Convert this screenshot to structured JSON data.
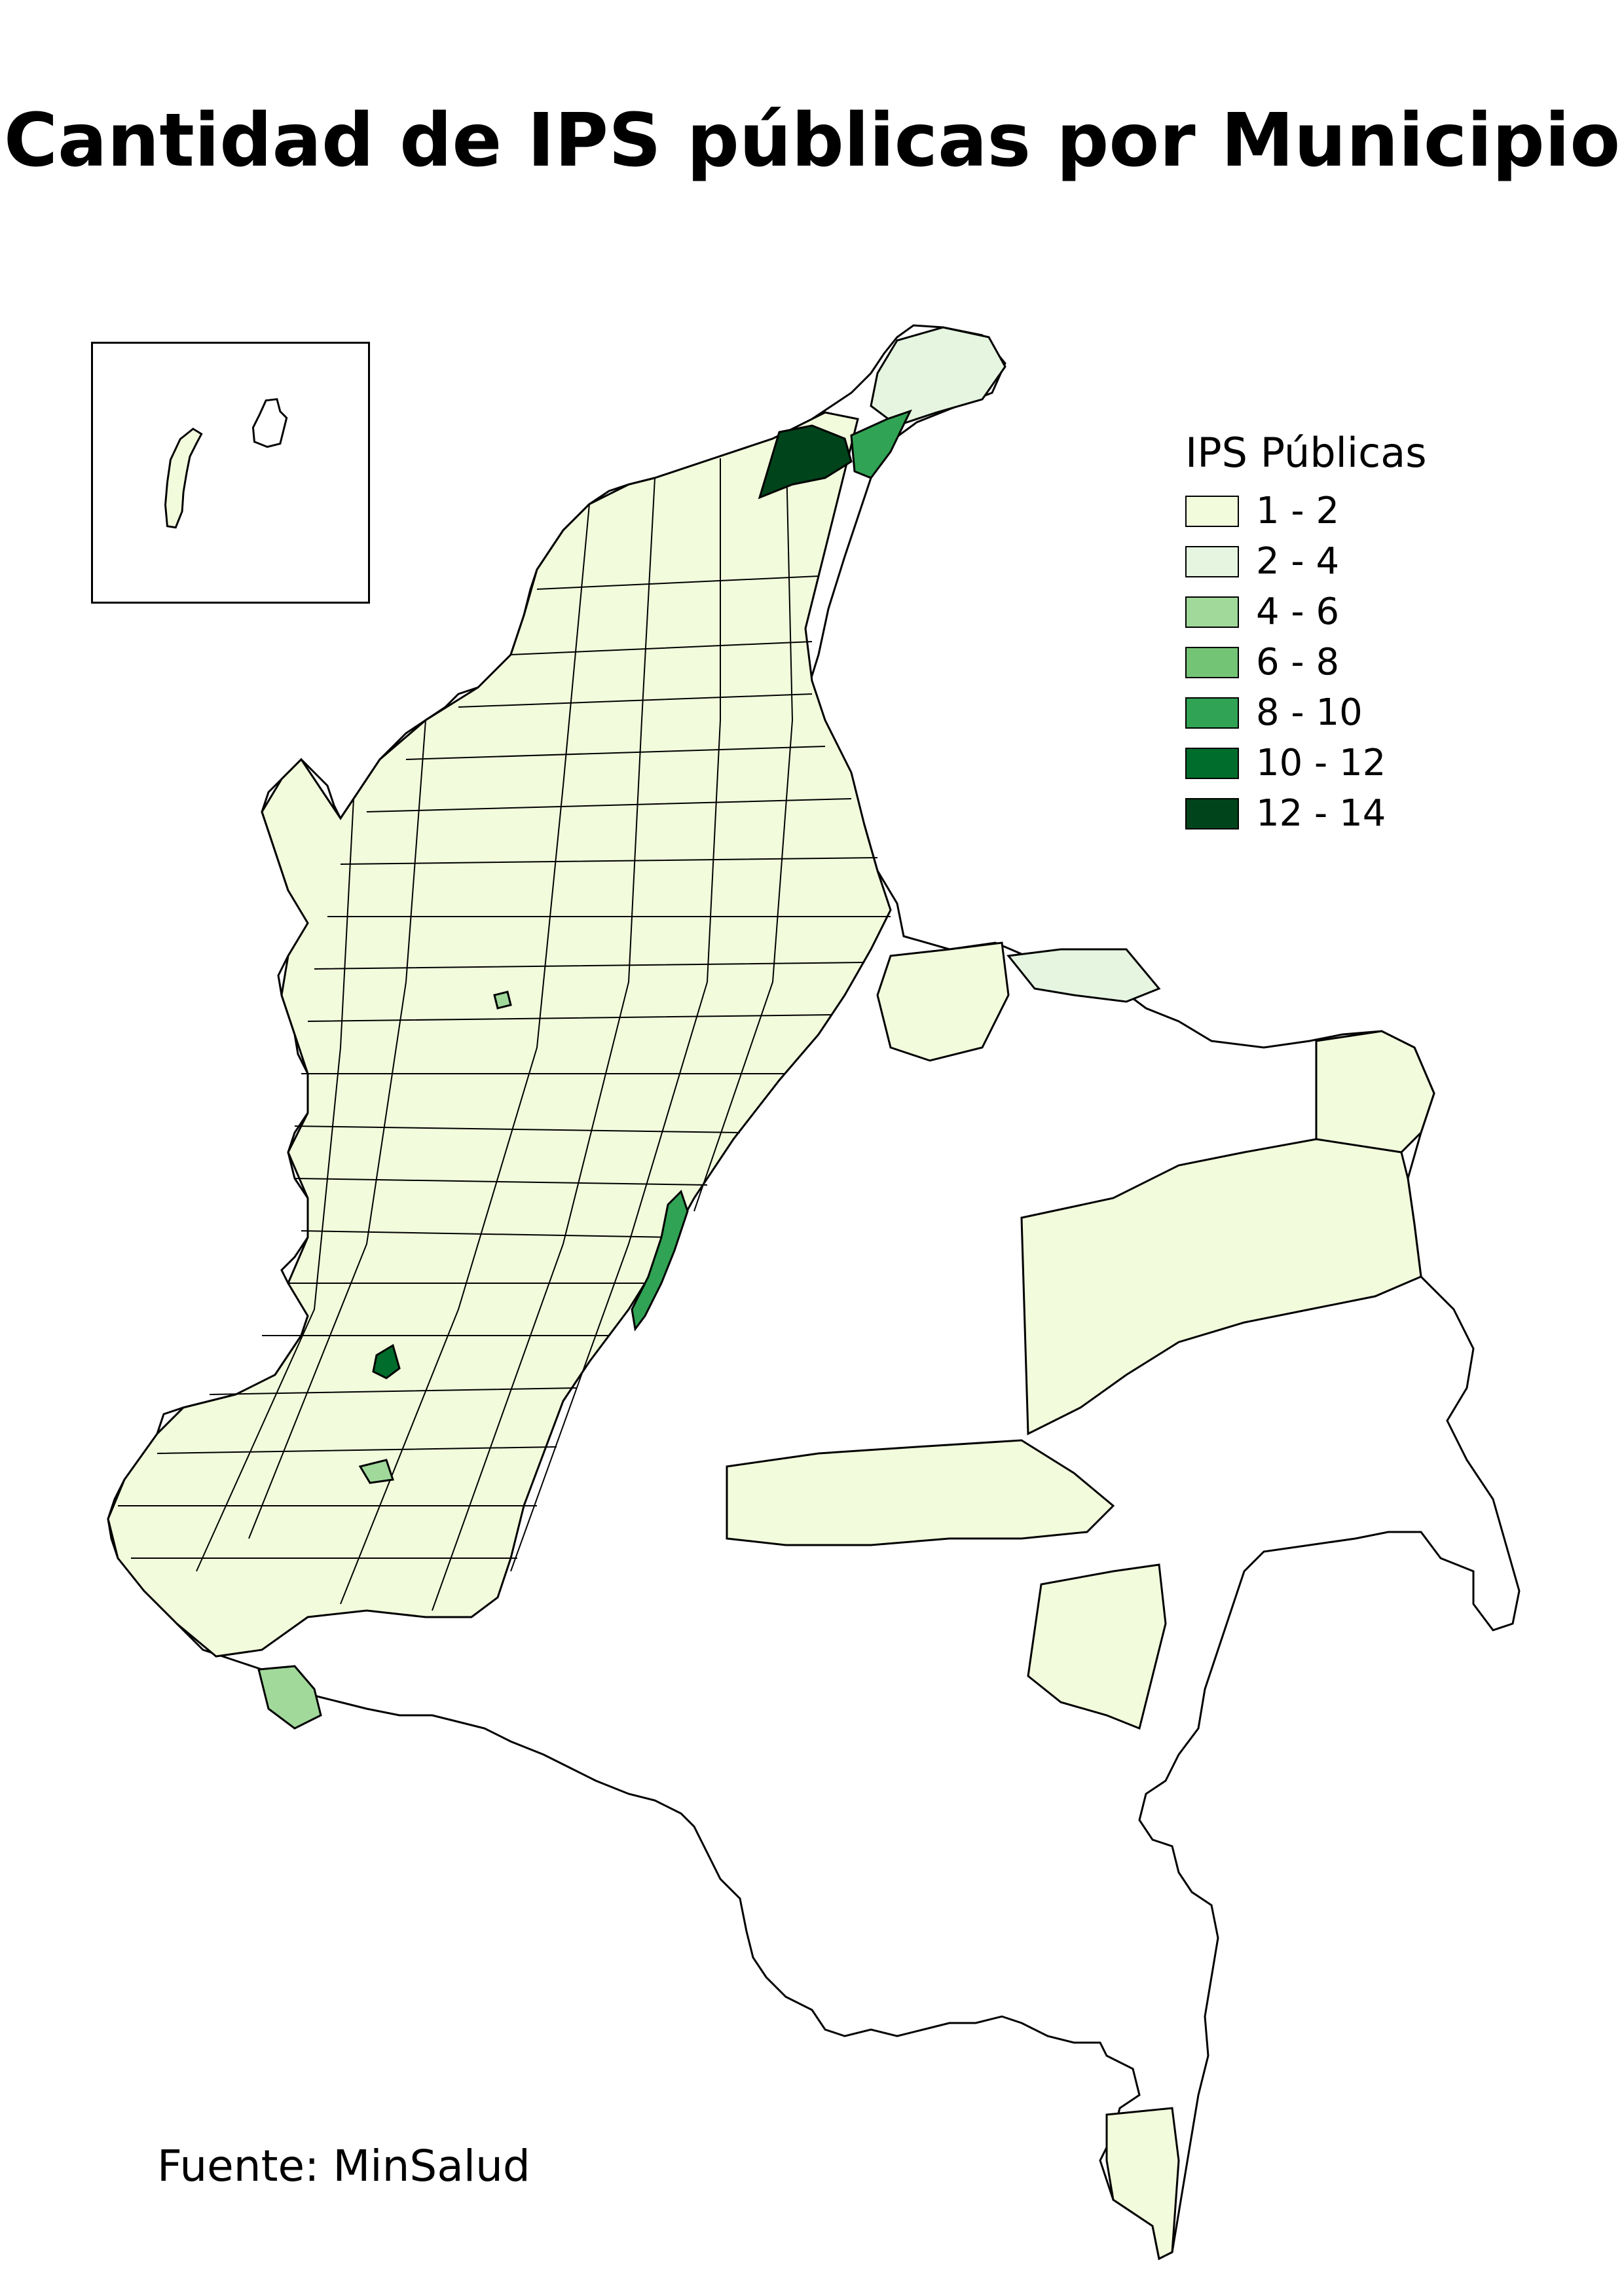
{
  "title": "Cantidad de IPS públicas por Municipio",
  "legend": {
    "title": "IPS Públicas",
    "classes": [
      {
        "label": "1 - 2",
        "color": "#f2fbdc"
      },
      {
        "label": "2 - 4",
        "color": "#e5f5e0"
      },
      {
        "label": "4 - 6",
        "color": "#a1d99b"
      },
      {
        "label": "6 - 8",
        "color": "#74c476"
      },
      {
        "label": "8 - 10",
        "color": "#31a354"
      },
      {
        "label": "10 - 12",
        "color": "#006d2c"
      },
      {
        "label": "12 - 14",
        "color": "#00441b"
      }
    ]
  },
  "source": "Fuente: MinSalud",
  "colors": {
    "no_data": "#ffffff",
    "boundary": "#000000"
  }
}
